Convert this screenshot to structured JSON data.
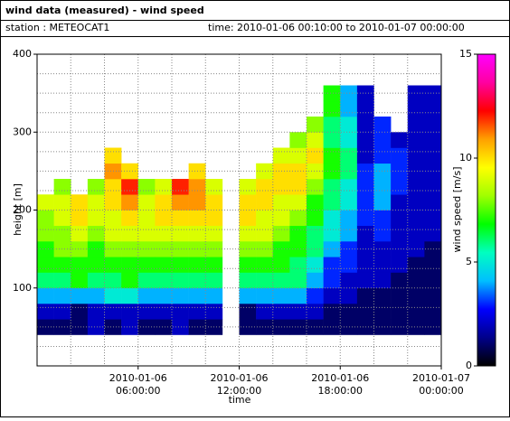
{
  "chart_data": {
    "type": "heatmap",
    "title": "wind data (measured) - wind speed",
    "station": "station : METEOCAT1",
    "time_range": "time: 2010-01-06 00:10:00 to 2010-01-07 00:00:00",
    "xlabel": "time",
    "ylabel": "height [m]",
    "zlabel": "wind speed [m/s]",
    "xlim": [
      0,
      24
    ],
    "ylim": [
      0,
      400
    ],
    "zlim": [
      0,
      15
    ],
    "xticks": [
      {
        "value": 6,
        "label": [
          "2010-01-06",
          "06:00:00"
        ]
      },
      {
        "value": 12,
        "label": [
          "2010-01-06",
          "12:00:00"
        ]
      },
      {
        "value": 18,
        "label": [
          "2010-01-06",
          "18:00:00"
        ]
      },
      {
        "value": 24,
        "label": [
          "2010-01-07",
          "00:00:00"
        ]
      }
    ],
    "xminorticks": [
      2,
      4,
      8,
      10,
      14,
      16,
      20,
      22
    ],
    "yticks": [
      100,
      200,
      300,
      400
    ],
    "yminorticks": [
      25,
      50,
      75,
      125,
      150,
      175,
      225,
      250,
      275,
      325,
      350,
      375
    ],
    "zticks": [
      0,
      5,
      10,
      15
    ],
    "colormap": [
      "#000000",
      "#00008b",
      "#0000ff",
      "#00bfff",
      "#00ffc0",
      "#00ff00",
      "#a0ff00",
      "#ffff00",
      "#ffa000",
      "#ff0000",
      "#ff00a0",
      "#ff00ff"
    ],
    "grid": true,
    "x_bins": [
      0,
      1,
      2,
      3,
      4,
      5,
      6,
      7,
      8,
      9,
      10,
      11,
      12,
      13,
      14,
      15,
      16,
      17,
      18,
      19,
      20,
      21,
      22,
      23,
      24
    ],
    "y_bins": [
      40,
      60,
      80,
      100,
      120,
      140,
      160,
      180,
      200,
      220,
      240,
      260,
      280,
      300,
      320,
      340,
      360
    ],
    "z": [
      [
        1,
        2,
        4,
        6,
        7,
        7,
        8,
        8,
        9,
        null,
        null,
        null,
        null,
        null,
        null,
        null
      ],
      [
        1,
        2,
        4,
        6,
        7,
        8,
        8,
        9,
        9,
        8,
        null,
        null,
        null,
        null,
        null,
        null
      ],
      [
        1,
        1,
        4,
        7,
        7,
        8,
        9,
        10,
        10,
        null,
        null,
        null,
        null,
        null,
        null,
        null
      ],
      [
        2,
        2,
        4,
        6,
        7,
        7,
        8,
        9,
        9,
        8,
        null,
        null,
        null,
        null,
        null,
        null
      ],
      [
        1,
        2,
        5,
        6,
        7,
        8,
        9,
        9,
        10,
        10,
        11,
        10,
        null,
        null,
        null,
        null
      ],
      [
        2,
        2,
        5,
        7,
        7,
        8,
        9,
        10,
        11,
        12,
        10,
        null,
        null,
        null,
        null,
        null
      ],
      [
        1,
        2,
        4,
        6,
        7,
        8,
        9,
        9,
        9,
        8,
        null,
        null,
        null,
        null,
        null,
        null
      ],
      [
        1,
        2,
        4,
        6,
        7,
        8,
        9,
        10,
        10,
        9,
        null,
        null,
        null,
        null,
        null,
        null
      ],
      [
        2,
        2,
        4,
        6,
        7,
        8,
        9,
        10,
        11,
        12,
        null,
        null,
        null,
        null,
        null,
        null
      ],
      [
        1,
        2,
        4,
        6,
        7,
        8,
        9,
        10,
        11,
        11,
        10,
        null,
        null,
        null,
        null,
        null
      ],
      [
        1,
        2,
        4,
        6,
        7,
        8,
        9,
        10,
        10,
        9,
        null,
        null,
        null,
        null,
        null,
        null
      ],
      [
        null,
        null,
        null,
        null,
        null,
        null,
        null,
        null,
        null,
        null,
        null,
        null,
        null,
        null,
        null,
        null
      ],
      [
        1,
        1,
        4,
        6,
        7,
        8,
        9,
        10,
        10,
        9,
        null,
        null,
        null,
        null,
        null,
        null
      ],
      [
        1,
        2,
        4,
        6,
        7,
        8,
        9,
        9,
        10,
        10,
        9,
        null,
        null,
        null,
        null,
        null
      ],
      [
        1,
        2,
        4,
        6,
        7,
        7,
        8,
        9,
        9,
        10,
        10,
        9,
        null,
        null,
        null,
        null
      ],
      [
        1,
        2,
        4,
        6,
        6,
        7,
        7,
        8,
        9,
        10,
        10,
        9,
        8,
        null,
        null,
        null
      ],
      [
        1,
        2,
        3,
        4,
        5,
        6,
        6,
        7,
        7,
        8,
        9,
        10,
        9,
        8,
        null,
        null
      ],
      [
        1,
        1,
        2,
        3,
        3,
        4,
        5,
        5,
        6,
        6,
        7,
        7,
        6,
        6,
        7,
        7
      ],
      [
        1,
        1,
        2,
        2,
        3,
        3,
        4,
        4,
        5,
        5,
        6,
        6,
        5,
        5,
        4,
        4
      ],
      [
        1,
        1,
        1,
        2,
        2,
        2,
        2,
        3,
        3,
        3,
        3,
        2,
        2,
        2,
        2,
        2
      ],
      [
        1,
        1,
        1,
        2,
        2,
        2,
        3,
        3,
        4,
        4,
        4,
        3,
        3,
        3,
        null,
        null
      ],
      [
        1,
        1,
        1,
        1,
        2,
        2,
        2,
        2,
        2,
        3,
        3,
        3,
        2,
        null,
        null,
        null
      ],
      [
        1,
        1,
        1,
        1,
        1,
        2,
        2,
        2,
        2,
        2,
        2,
        2,
        2,
        2,
        2,
        2
      ],
      [
        1,
        1,
        1,
        1,
        1,
        1,
        2,
        2,
        2,
        2,
        2,
        2,
        2,
        2,
        2,
        2
      ]
    ]
  }
}
